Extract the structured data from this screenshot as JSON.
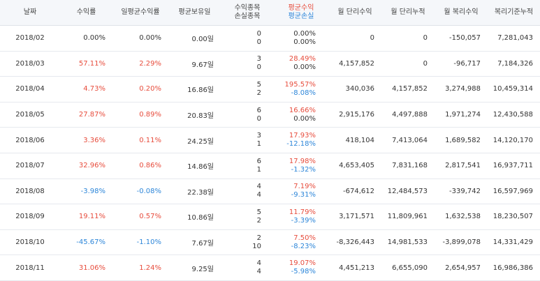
{
  "headers": [
    "날짜",
    "수익률",
    "일평균수익률",
    "평균보유일",
    [
      "수익종목",
      "손실종목"
    ],
    [
      "평균수익",
      "평균손실"
    ],
    "월 단리수익",
    "월 단리누적",
    "월 복리수익",
    "복리기준누적"
  ],
  "rows": [
    {
      "date": "2018/02",
      "ret": "0.00%",
      "ret_sign": "neu",
      "daily": "0.00%",
      "daily_sign": "neu",
      "hold": "0.00일",
      "win": "0",
      "loss": "0",
      "avg_gain": "0.00%",
      "avg_gain_sign": "neu",
      "avg_loss": "0.00%",
      "avg_loss_sign": "neu",
      "simple": "0",
      "simple_cum": "0",
      "comp": "-150,057",
      "comp_cum": "7,281,043"
    },
    {
      "date": "2018/03",
      "ret": "57.11%",
      "ret_sign": "pos",
      "daily": "2.29%",
      "daily_sign": "pos",
      "hold": "9.67일",
      "win": "3",
      "loss": "0",
      "avg_gain": "28.49%",
      "avg_gain_sign": "pos",
      "avg_loss": "0.00%",
      "avg_loss_sign": "neu",
      "simple": "4,157,852",
      "simple_cum": "0",
      "comp": "-96,717",
      "comp_cum": "7,184,326"
    },
    {
      "date": "2018/04",
      "ret": "4.73%",
      "ret_sign": "pos",
      "daily": "0.20%",
      "daily_sign": "pos",
      "hold": "16.86일",
      "win": "5",
      "loss": "2",
      "avg_gain": "195.57%",
      "avg_gain_sign": "pos",
      "avg_loss": "-8.08%",
      "avg_loss_sign": "neg",
      "simple": "340,036",
      "simple_cum": "4,157,852",
      "comp": "3,274,988",
      "comp_cum": "10,459,314"
    },
    {
      "date": "2018/05",
      "ret": "27.87%",
      "ret_sign": "pos",
      "daily": "0.89%",
      "daily_sign": "pos",
      "hold": "20.83일",
      "win": "6",
      "loss": "0",
      "avg_gain": "16.66%",
      "avg_gain_sign": "pos",
      "avg_loss": "0.00%",
      "avg_loss_sign": "neu",
      "simple": "2,915,176",
      "simple_cum": "4,497,888",
      "comp": "1,971,274",
      "comp_cum": "12,430,588"
    },
    {
      "date": "2018/06",
      "ret": "3.36%",
      "ret_sign": "pos",
      "daily": "0.11%",
      "daily_sign": "pos",
      "hold": "24.25일",
      "win": "3",
      "loss": "1",
      "avg_gain": "17.93%",
      "avg_gain_sign": "pos",
      "avg_loss": "-12.18%",
      "avg_loss_sign": "neg",
      "simple": "418,104",
      "simple_cum": "7,413,064",
      "comp": "1,689,582",
      "comp_cum": "14,120,170"
    },
    {
      "date": "2018/07",
      "ret": "32.96%",
      "ret_sign": "pos",
      "daily": "0.86%",
      "daily_sign": "pos",
      "hold": "14.86일",
      "win": "6",
      "loss": "1",
      "avg_gain": "17.98%",
      "avg_gain_sign": "pos",
      "avg_loss": "-1.32%",
      "avg_loss_sign": "neg",
      "simple": "4,653,405",
      "simple_cum": "7,831,168",
      "comp": "2,817,541",
      "comp_cum": "16,937,711"
    },
    {
      "date": "2018/08",
      "ret": "-3.98%",
      "ret_sign": "neg",
      "daily": "-0.08%",
      "daily_sign": "neg",
      "hold": "22.38일",
      "win": "4",
      "loss": "4",
      "avg_gain": "7.19%",
      "avg_gain_sign": "pos",
      "avg_loss": "-9.31%",
      "avg_loss_sign": "neg",
      "simple": "-674,612",
      "simple_cum": "12,484,573",
      "comp": "-339,742",
      "comp_cum": "16,597,969"
    },
    {
      "date": "2018/09",
      "ret": "19.11%",
      "ret_sign": "pos",
      "daily": "0.57%",
      "daily_sign": "pos",
      "hold": "10.86일",
      "win": "5",
      "loss": "2",
      "avg_gain": "11.79%",
      "avg_gain_sign": "pos",
      "avg_loss": "-3.39%",
      "avg_loss_sign": "neg",
      "simple": "3,171,571",
      "simple_cum": "11,809,961",
      "comp": "1,632,538",
      "comp_cum": "18,230,507"
    },
    {
      "date": "2018/10",
      "ret": "-45.67%",
      "ret_sign": "neg",
      "daily": "-1.10%",
      "daily_sign": "neg",
      "hold": "7.67일",
      "win": "2",
      "loss": "10",
      "avg_gain": "7.50%",
      "avg_gain_sign": "pos",
      "avg_loss": "-8.23%",
      "avg_loss_sign": "neg",
      "simple": "-8,326,443",
      "simple_cum": "14,981,533",
      "comp": "-3,899,078",
      "comp_cum": "14,331,429"
    },
    {
      "date": "2018/11",
      "ret": "31.06%",
      "ret_sign": "pos",
      "daily": "1.24%",
      "daily_sign": "pos",
      "hold": "9.25일",
      "win": "4",
      "loss": "4",
      "avg_gain": "19.07%",
      "avg_gain_sign": "pos",
      "avg_loss": "-5.98%",
      "avg_loss_sign": "neg",
      "simple": "4,451,213",
      "simple_cum": "6,655,090",
      "comp": "2,654,957",
      "comp_cum": "16,986,386"
    }
  ],
  "colors": {
    "positive": "#e74c3c",
    "negative": "#2d86d9",
    "header_bg": "#f5f7fa"
  }
}
